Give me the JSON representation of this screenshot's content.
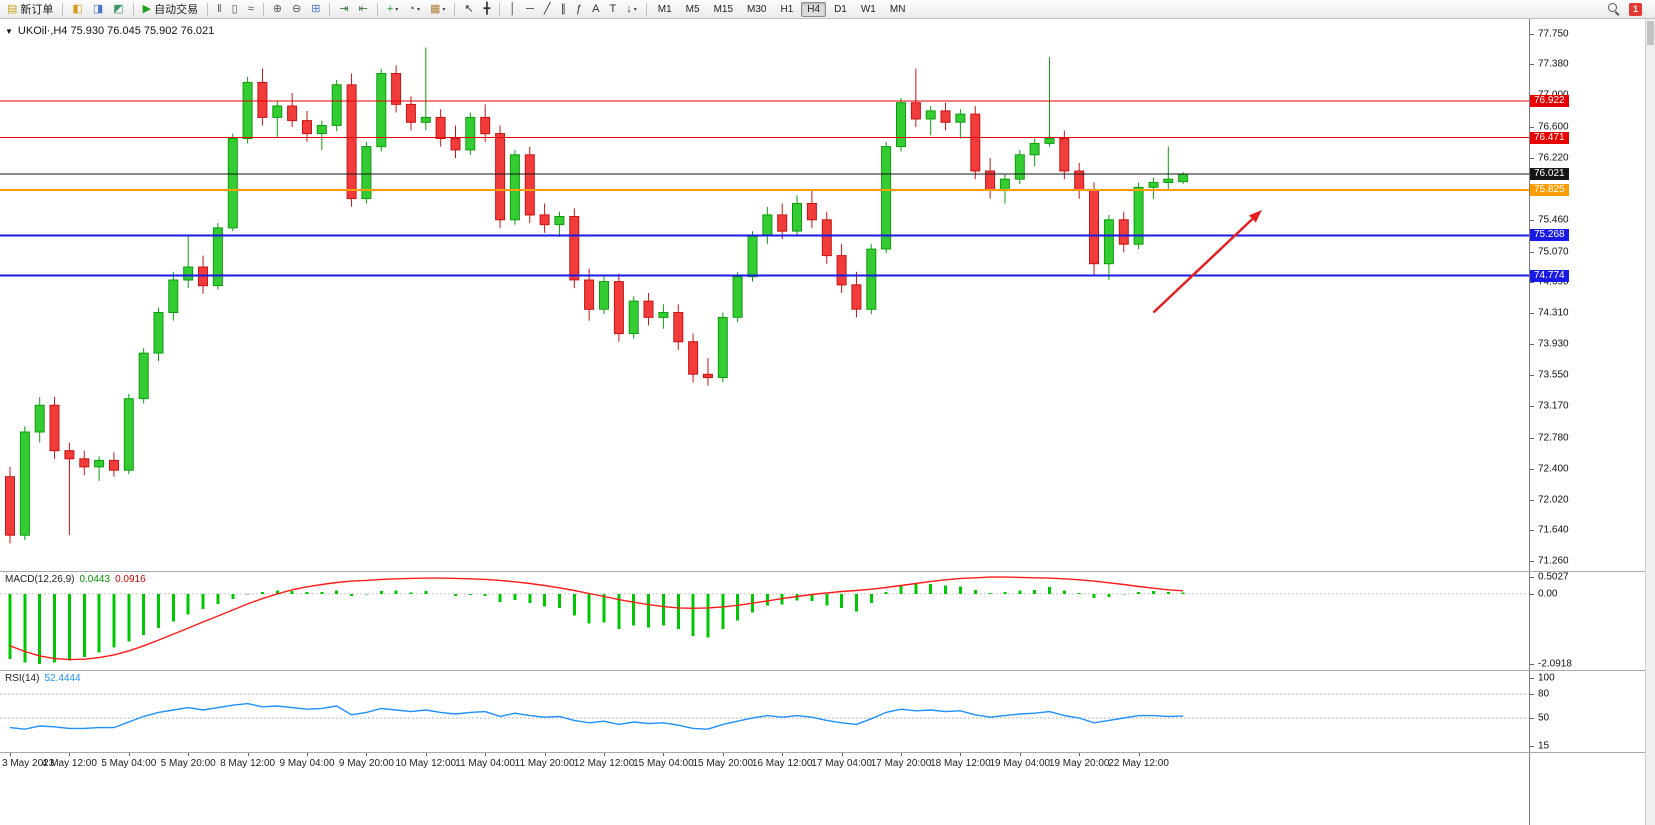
{
  "toolbar": {
    "timeframes": [
      "M1",
      "M5",
      "M15",
      "M30",
      "H1",
      "H4",
      "D1",
      "W1",
      "MN"
    ],
    "active_timeframe": "H4",
    "badge_count": "1",
    "groups": [
      {
        "items": [
          {
            "name": "new-order-button",
            "glyph": "▤",
            "color": "#caa21c",
            "label": "新订单"
          }
        ]
      },
      {
        "items": [
          {
            "name": "charts-button",
            "glyph": "◧",
            "color": "#d49a1a"
          },
          {
            "name": "profiles-button",
            "glyph": "◨",
            "color": "#4a78c8"
          },
          {
            "name": "market-watch-button",
            "glyph": "◩",
            "color": "#3a9a6a"
          }
        ]
      },
      {
        "items": [
          {
            "name": "autotrading-button",
            "glyph": "▶",
            "color": "#1fa01f",
            "label": "自动交易"
          }
        ]
      },
      {
        "items": [
          {
            "name": "bar-chart-button",
            "glyph": "‖",
            "color": "#555555"
          },
          {
            "name": "candlestick-button",
            "glyph": "▯",
            "color": "#555555"
          },
          {
            "name": "line-chart-button",
            "glyph": "≈",
            "color": "#555555"
          }
        ]
      },
      {
        "items": [
          {
            "name": "zoom-in-button",
            "glyph": "⊕",
            "color": "#555555"
          },
          {
            "name": "zoom-out-button",
            "glyph": "⊖",
            "color": "#555555"
          },
          {
            "name": "tile-windows-button",
            "glyph": "⊞",
            "color": "#4a78c8"
          }
        ]
      },
      {
        "items": [
          {
            "name": "auto-scroll-button",
            "glyph": "⇥",
            "color": "#3a7a3a"
          },
          {
            "name": "chart-shift-button",
            "glyph": "⇤",
            "color": "#3a7a3a"
          }
        ]
      },
      {
        "items": [
          {
            "name": "indicators-button",
            "glyph": "+",
            "color": "#1fa01f",
            "caret": true
          },
          {
            "name": "periods-button",
            "glyph": "◔",
            "color": "#555555",
            "caret": true
          },
          {
            "name": "templates-button",
            "glyph": "▦",
            "color": "#b08038",
            "caret": true
          }
        ]
      },
      {
        "items": [
          {
            "name": "cursor-button",
            "glyph": "↖",
            "color": "#333333"
          },
          {
            "name": "crosshair-button",
            "glyph": "╋",
            "color": "#333333"
          }
        ]
      },
      {
        "items": [
          {
            "name": "vertical-line-button",
            "glyph": "│",
            "color": "#333333"
          },
          {
            "name": "horizontal-line-button",
            "glyph": "─",
            "color": "#333333"
          },
          {
            "name": "trendline-button",
            "glyph": "╱",
            "color": "#333333"
          },
          {
            "name": "channel-button",
            "glyph": "∥",
            "color": "#333333"
          },
          {
            "name": "fibonacci-button",
            "glyph": "ƒ",
            "color": "#333333"
          },
          {
            "name": "text-button",
            "glyph": "A",
            "color": "#333333"
          },
          {
            "name": "text-label-button",
            "glyph": "T",
            "color": "#333333"
          },
          {
            "name": "arrows-button",
            "glyph": "↓",
            "color": "#333333",
            "caret": true
          }
        ]
      }
    ]
  },
  "chart": {
    "header_marker": "▼"
  },
  "chart_data": {
    "type": "candlestick",
    "symbol": "UKOil",
    "period": "H4",
    "title": "UKOil·,H4 75.930 76.045 75.902 76.021",
    "ohlc_current": [
      75.93,
      76.045,
      75.902,
      76.021
    ],
    "ylim": [
      71.14,
      77.93
    ],
    "y_ticks": [
      "77.750",
      "77.380",
      "77.000",
      "76.600",
      "76.220",
      "75.840",
      "75.460",
      "75.070",
      "74.690",
      "74.310",
      "73.930",
      "73.550",
      "73.170",
      "72.780",
      "72.400",
      "72.020",
      "71.640",
      "71.260"
    ],
    "x_labels": [
      "3 May 2023",
      "4 May 12:00",
      "5 May 04:00",
      "5 May 20:00",
      "8 May 12:00",
      "9 May 04:00",
      "9 May 20:00",
      "10 May 12:00",
      "11 May 04:00",
      "11 May 20:00",
      "12 May 12:00",
      "15 May 04:00",
      "15 May 20:00",
      "16 May 12:00",
      "17 May 04:00",
      "17 May 20:00",
      "18 May 12:00",
      "19 May 04:00",
      "19 May 20:00",
      "22 May 12:00"
    ],
    "x_label_step": 4,
    "colors": {
      "bull": "#33cc33",
      "bull_border": "#0f9d0f",
      "bear": "#f23b3b",
      "bear_border": "#c81414",
      "macd_hist": "#00c800",
      "macd_signal": "#ff1a1a",
      "rsi_line": "#1e90ff",
      "hline_red": "#e60000",
      "hline_blue": "#1a1ae6",
      "hline_orange": "#ff9d00",
      "hline_black": "#151515",
      "arrow": "#e62020"
    },
    "candles_ohlc": [
      [
        72.3,
        72.42,
        71.48,
        71.58
      ],
      [
        71.58,
        72.92,
        71.52,
        72.85
      ],
      [
        72.85,
        73.28,
        72.72,
        73.18
      ],
      [
        73.18,
        73.28,
        72.52,
        72.62
      ],
      [
        72.62,
        72.72,
        71.58,
        72.52
      ],
      [
        72.52,
        72.62,
        72.32,
        72.42
      ],
      [
        72.42,
        72.55,
        72.25,
        72.5
      ],
      [
        72.5,
        72.6,
        72.3,
        72.38
      ],
      [
        72.38,
        73.32,
        72.33,
        73.26
      ],
      [
        73.26,
        73.88,
        73.2,
        73.82
      ],
      [
        73.82,
        74.38,
        73.72,
        74.32
      ],
      [
        74.32,
        74.82,
        74.22,
        74.72
      ],
      [
        74.72,
        75.28,
        74.62,
        74.88
      ],
      [
        74.88,
        75.02,
        74.55,
        74.65
      ],
      [
        74.65,
        75.42,
        74.6,
        75.36
      ],
      [
        75.36,
        76.52,
        75.32,
        76.46
      ],
      [
        76.46,
        77.22,
        76.4,
        77.15
      ],
      [
        77.15,
        77.32,
        76.62,
        76.72
      ],
      [
        76.72,
        76.92,
        76.48,
        76.86
      ],
      [
        76.86,
        77.02,
        76.6,
        76.68
      ],
      [
        76.68,
        76.8,
        76.42,
        76.52
      ],
      [
        76.52,
        76.68,
        76.32,
        76.62
      ],
      [
        76.62,
        77.18,
        76.55,
        77.12
      ],
      [
        77.12,
        77.26,
        75.62,
        75.72
      ],
      [
        75.72,
        76.42,
        75.66,
        76.36
      ],
      [
        76.36,
        77.32,
        76.3,
        77.26
      ],
      [
        77.26,
        77.36,
        76.78,
        76.88
      ],
      [
        76.88,
        76.98,
        76.56,
        76.66
      ],
      [
        76.66,
        77.58,
        76.56,
        76.72
      ],
      [
        76.72,
        76.82,
        76.36,
        76.46
      ],
      [
        76.46,
        76.62,
        76.22,
        76.32
      ],
      [
        76.32,
        76.78,
        76.26,
        76.72
      ],
      [
        76.72,
        76.88,
        76.42,
        76.52
      ],
      [
        76.52,
        76.62,
        75.36,
        75.46
      ],
      [
        75.46,
        76.32,
        75.4,
        76.26
      ],
      [
        76.26,
        76.36,
        75.42,
        75.52
      ],
      [
        75.52,
        75.66,
        75.3,
        75.4
      ],
      [
        75.4,
        75.56,
        75.25,
        75.5
      ],
      [
        75.5,
        75.6,
        74.62,
        74.72
      ],
      [
        74.72,
        74.86,
        74.22,
        74.36
      ],
      [
        74.36,
        74.76,
        74.3,
        74.7
      ],
      [
        74.7,
        74.8,
        73.96,
        74.06
      ],
      [
        74.06,
        74.52,
        74.0,
        74.46
      ],
      [
        74.46,
        74.56,
        74.16,
        74.26
      ],
      [
        74.26,
        74.42,
        74.12,
        74.32
      ],
      [
        74.32,
        74.42,
        73.86,
        73.96
      ],
      [
        73.96,
        74.06,
        73.46,
        73.56
      ],
      [
        73.56,
        73.76,
        73.42,
        73.52
      ],
      [
        73.52,
        74.32,
        73.46,
        74.26
      ],
      [
        74.26,
        74.82,
        74.2,
        74.76
      ],
      [
        74.76,
        75.32,
        74.7,
        75.26
      ],
      [
        75.26,
        75.62,
        75.16,
        75.52
      ],
      [
        75.52,
        75.66,
        75.22,
        75.32
      ],
      [
        75.32,
        75.76,
        75.26,
        75.66
      ],
      [
        75.66,
        75.82,
        75.36,
        75.46
      ],
      [
        75.46,
        75.56,
        74.92,
        75.02
      ],
      [
        75.02,
        75.16,
        74.56,
        74.66
      ],
      [
        74.66,
        74.82,
        74.26,
        74.36
      ],
      [
        74.36,
        75.16,
        74.3,
        75.1
      ],
      [
        75.1,
        76.42,
        75.05,
        76.36
      ],
      [
        76.36,
        76.96,
        76.3,
        76.9
      ],
      [
        76.9,
        77.32,
        76.6,
        76.7
      ],
      [
        76.7,
        76.86,
        76.5,
        76.8
      ],
      [
        76.8,
        76.9,
        76.56,
        76.66
      ],
      [
        76.66,
        76.82,
        76.46,
        76.76
      ],
      [
        76.76,
        76.86,
        75.96,
        76.06
      ],
      [
        76.06,
        76.22,
        75.72,
        75.82
      ],
      [
        75.82,
        76.02,
        75.66,
        75.96
      ],
      [
        75.96,
        76.32,
        75.9,
        76.26
      ],
      [
        76.26,
        76.46,
        76.12,
        76.4
      ],
      [
        76.4,
        77.46,
        76.36,
        76.46
      ],
      [
        76.46,
        76.56,
        75.96,
        76.06
      ],
      [
        76.06,
        76.16,
        75.72,
        75.82
      ],
      [
        75.82,
        75.92,
        74.78,
        74.92
      ],
      [
        74.92,
        75.52,
        74.72,
        75.46
      ],
      [
        75.46,
        75.56,
        75.06,
        75.16
      ],
      [
        75.16,
        75.92,
        75.1,
        75.86
      ],
      [
        75.86,
        75.98,
        75.72,
        75.92
      ],
      [
        75.92,
        76.36,
        75.82,
        75.96
      ],
      [
        75.93,
        76.045,
        75.902,
        76.021
      ]
    ],
    "hlines": [
      {
        "price": 76.922,
        "color_key": "hline_red",
        "width": 1
      },
      {
        "price": 76.471,
        "color_key": "hline_red",
        "width": 1
      },
      {
        "price": 76.021,
        "color_key": "hline_black",
        "width": 1
      },
      {
        "price": 75.825,
        "color_key": "hline_orange",
        "width": 2
      },
      {
        "price": 75.268,
        "color_key": "hline_blue",
        "width": 2
      },
      {
        "price": 74.774,
        "color_key": "hline_blue",
        "width": 2
      }
    ],
    "axis_price_labels": [
      {
        "value": "76.922",
        "color_key": "hline_red"
      },
      {
        "value": "76.471",
        "color_key": "hline_red"
      },
      {
        "value": "76.021",
        "color_key": "hline_black"
      },
      {
        "value": "75.825",
        "color_key": "hline_orange"
      },
      {
        "value": "75.268",
        "color_key": "hline_blue"
      },
      {
        "value": "74.774",
        "color_key": "hline_blue"
      }
    ],
    "arrow": {
      "from_index": 77,
      "from_price": 74.32,
      "to_index": 84.3,
      "to_price": 75.58
    },
    "indicators": {
      "macd": {
        "label": "MACD(12,26,9)",
        "value_main": "0.0443",
        "value_signal": "0.0916",
        "scale_labels": [
          "0.5027",
          "0.00",
          "-2.0918"
        ],
        "scale_max": 0.5027,
        "scale_min": -2.0918,
        "histogram": [
          -1.95,
          -2.05,
          -2.09,
          -2.05,
          -1.98,
          -1.88,
          -1.75,
          -1.6,
          -1.42,
          -1.22,
          -1.02,
          -0.82,
          -0.62,
          -0.45,
          -0.3,
          -0.15,
          -0.02,
          0.06,
          0.1,
          0.08,
          0.05,
          0.06,
          0.1,
          -0.06,
          -0.02,
          0.08,
          0.1,
          0.04,
          0.08,
          0.0,
          -0.06,
          -0.04,
          -0.06,
          -0.25,
          -0.18,
          -0.28,
          -0.38,
          -0.42,
          -0.65,
          -0.88,
          -0.85,
          -1.05,
          -0.95,
          -1.0,
          -0.95,
          -1.05,
          -1.25,
          -1.3,
          -1.05,
          -0.8,
          -0.55,
          -0.35,
          -0.32,
          -0.2,
          -0.22,
          -0.35,
          -0.42,
          -0.52,
          -0.28,
          0.05,
          0.25,
          0.32,
          0.3,
          0.25,
          0.22,
          0.12,
          0.02,
          0.05,
          0.1,
          0.12,
          0.2,
          0.1,
          0.02,
          -0.12,
          -0.1,
          -0.02,
          0.06,
          0.08,
          0.06,
          0.044
        ],
        "signal": [
          -1.55,
          -1.72,
          -1.85,
          -1.93,
          -1.96,
          -1.95,
          -1.9,
          -1.82,
          -1.7,
          -1.55,
          -1.38,
          -1.2,
          -1.02,
          -0.84,
          -0.66,
          -0.48,
          -0.3,
          -0.14,
          0.0,
          0.12,
          0.21,
          0.28,
          0.34,
          0.38,
          0.4,
          0.43,
          0.45,
          0.46,
          0.47,
          0.47,
          0.46,
          0.45,
          0.43,
          0.4,
          0.36,
          0.31,
          0.25,
          0.18,
          0.1,
          0.01,
          -0.08,
          -0.17,
          -0.25,
          -0.32,
          -0.38,
          -0.42,
          -0.43,
          -0.42,
          -0.39,
          -0.34,
          -0.28,
          -0.21,
          -0.14,
          -0.08,
          -0.02,
          0.03,
          0.07,
          0.1,
          0.14,
          0.19,
          0.25,
          0.31,
          0.37,
          0.42,
          0.46,
          0.48,
          0.5,
          0.5,
          0.49,
          0.48,
          0.47,
          0.45,
          0.42,
          0.38,
          0.33,
          0.28,
          0.22,
          0.17,
          0.12,
          0.09
        ]
      },
      "rsi": {
        "label": "RSI(14)",
        "value": "52.4444",
        "scale_labels": [
          "100",
          "80",
          "50",
          "15"
        ],
        "scale_max": 100,
        "scale_min": 15,
        "levels": [
          80,
          50
        ],
        "values": [
          38,
          36,
          40,
          39,
          37,
          37,
          38,
          38,
          45,
          52,
          57,
          60,
          63,
          60,
          63,
          66,
          68,
          64,
          65,
          63,
          61,
          62,
          65,
          54,
          57,
          62,
          60,
          58,
          60,
          57,
          55,
          57,
          58,
          52,
          56,
          53,
          51,
          52,
          47,
          44,
          46,
          42,
          45,
          43,
          44,
          41,
          37,
          36,
          42,
          46,
          50,
          53,
          51,
          53,
          51,
          47,
          44,
          42,
          49,
          57,
          61,
          59,
          60,
          58,
          59,
          54,
          51,
          53,
          55,
          56,
          58,
          53,
          50,
          44,
          47,
          50,
          53,
          53,
          52,
          52.4
        ]
      }
    }
  }
}
